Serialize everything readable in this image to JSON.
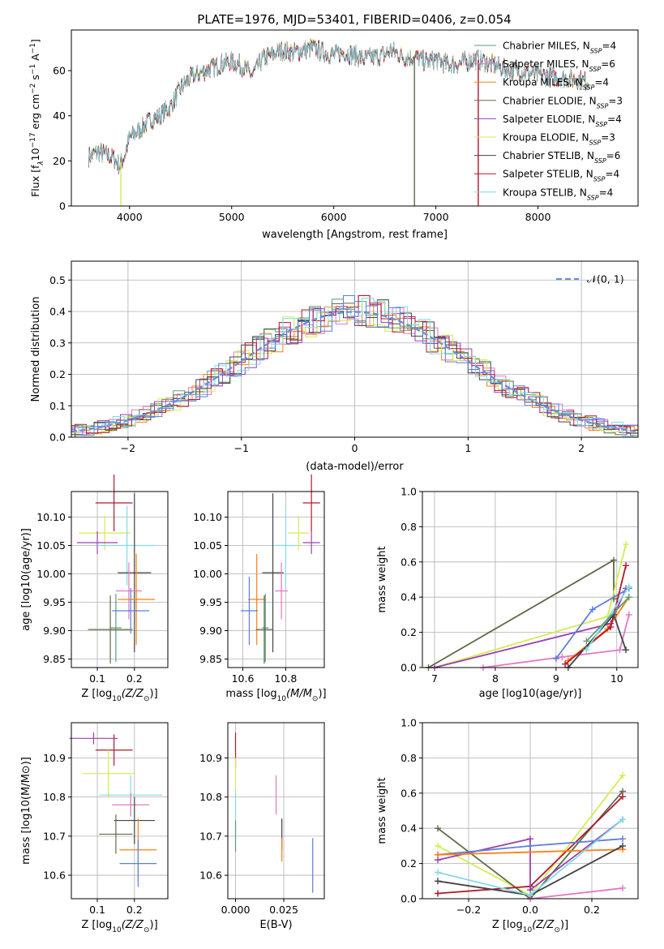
{
  "figure_title": "PLATE=1976, MJD=53401, FIBERID=0406, z=0.054",
  "colors": {
    "Chabrier MILES": "#5b9e78",
    "Salpeter MILES": "#e377c2",
    "Kroupa MILES": "#ff7f0e",
    "Chabrier ELODIE": "#5e6b48",
    "Salpeter ELODIE": "#9e3fb2",
    "Kroupa ELODIE": "#d4ec50",
    "Chabrier STELIB": "#444444",
    "Salpeter STELIB": "#b2182b",
    "Kroupa STELIB": "#7fdce6",
    "extra_blue": "#5a7fdc",
    "normal_curve": "#6a8ed8",
    "grid": "#b0b0b0"
  },
  "chart_data": [
    {
      "id": "spectrum",
      "type": "line",
      "title": "PLATE=1976, MJD=53401, FIBERID=0406, z=0.054",
      "xlabel": "wavelength [Angstrom, rest frame]",
      "ylabel_parts": [
        "Flux [f",
        "λ",
        "10",
        "−17",
        " erg cm",
        "−2",
        " s",
        "−1",
        " A",
        "−1",
        "]"
      ],
      "xlim": [
        3430,
        8980
      ],
      "ylim": [
        0,
        78
      ],
      "xticks": [
        "4000",
        "5000",
        "6000",
        "7000",
        "8000"
      ],
      "yticks": [
        "0",
        "20",
        "40",
        "60"
      ],
      "grid": false,
      "legend_position": "upper-right",
      "legend": [
        {
          "name": "Chabrier MILES",
          "nssp": "4"
        },
        {
          "name": "Salpeter MILES",
          "nssp": "6"
        },
        {
          "name": "Kroupa MILES",
          "nssp": "4"
        },
        {
          "name": "Chabrier ELODIE",
          "nssp": "3"
        },
        {
          "name": "Salpeter ELODIE",
          "nssp": "4"
        },
        {
          "name": "Kroupa ELODIE",
          "nssp": "3"
        },
        {
          "name": "Chabrier STELIB",
          "nssp": "6"
        },
        {
          "name": "Salpeter STELIB",
          "nssp": "4"
        },
        {
          "name": "Kroupa STELIB",
          "nssp": "4"
        }
      ],
      "legend_nssp_label": "N",
      "legend_nssp_sub": "SSP",
      "continuum": [
        [
          3600,
          22
        ],
        [
          3700,
          24
        ],
        [
          3800,
          22
        ],
        [
          3850,
          21
        ],
        [
          3900,
          18
        ],
        [
          3950,
          22
        ],
        [
          4000,
          30
        ],
        [
          4100,
          34
        ],
        [
          4200,
          38
        ],
        [
          4300,
          40
        ],
        [
          4400,
          44
        ],
        [
          4500,
          52
        ],
        [
          4600,
          57
        ],
        [
          4700,
          59
        ],
        [
          4800,
          61
        ],
        [
          4900,
          63
        ],
        [
          5000,
          64
        ],
        [
          5100,
          62
        ],
        [
          5200,
          58
        ],
        [
          5300,
          65
        ],
        [
          5400,
          67
        ],
        [
          5500,
          69
        ],
        [
          5600,
          68
        ],
        [
          5700,
          69
        ],
        [
          5800,
          70
        ],
        [
          5900,
          68
        ],
        [
          6000,
          67
        ],
        [
          6100,
          68
        ],
        [
          6200,
          67
        ],
        [
          6300,
          65
        ],
        [
          6400,
          66
        ],
        [
          6500,
          67
        ],
        [
          6560,
          69
        ],
        [
          6600,
          68
        ],
        [
          6700,
          66
        ],
        [
          6800,
          66
        ],
        [
          6900,
          64
        ],
        [
          7000,
          65
        ],
        [
          7100,
          63
        ],
        [
          7200,
          63
        ],
        [
          7300,
          64
        ],
        [
          7400,
          65
        ],
        [
          7600,
          62
        ],
        [
          7700,
          60
        ],
        [
          7800,
          60
        ],
        [
          8000,
          58
        ],
        [
          8200,
          57
        ],
        [
          8400,
          56
        ],
        [
          8500,
          55
        ]
      ],
      "drops": [
        {
          "series": "Kroupa ELODIE",
          "x": 3915,
          "to": 0
        },
        {
          "series": "Chabrier ELODIE",
          "x": 6790,
          "to": 0
        },
        {
          "series": "Salpeter STELIB",
          "x": 7415,
          "to": 0
        }
      ]
    },
    {
      "id": "residual_hist",
      "type": "histogram",
      "xlabel": "(data-model)/error",
      "ylabel": "Normed distribution",
      "xlim": [
        -2.5,
        2.5
      ],
      "ylim": [
        0,
        0.56
      ],
      "xticks": [
        "−2",
        "−1",
        "0",
        "1",
        "2"
      ],
      "yticks": [
        "0.0",
        "0.1",
        "0.2",
        "0.3",
        "0.4",
        "0.5"
      ],
      "grid": true,
      "legend_position": "upper-right",
      "legend_label": "𝒩(0, 1)",
      "normal_curve": {
        "mean": 0,
        "sigma": 1
      }
    },
    {
      "id": "age_vs_Z",
      "type": "errorbar",
      "xlabel_main": "Z [log",
      "xlabel_sub": "10",
      "xlabel_rest": "(Z/Z",
      "xlabel_sun": "⊙",
      "xlabel_end": ")]",
      "ylabel": "age  [log10(age/yr)]",
      "xlim": [
        0.03,
        0.29
      ],
      "ylim": [
        9.835,
        10.145
      ],
      "xticks": [
        "0.1",
        "0.2"
      ],
      "yticks": [
        "9.85",
        "9.90",
        "9.95",
        "10.00",
        "10.05",
        "10.10"
      ],
      "points": [
        {
          "series": "Salpeter STELIB",
          "x": 0.145,
          "xerr": 0.05,
          "y": 10.125,
          "yerr": 0.05
        },
        {
          "series": "Kroupa ELODIE",
          "x": 0.12,
          "xerr": 0.07,
          "y": 10.072,
          "yerr": 0.03
        },
        {
          "series": "Salpeter ELODIE",
          "x": 0.1,
          "xerr": 0.055,
          "y": 10.055,
          "yerr": 0.02
        },
        {
          "series": "Kroupa STELIB",
          "x": 0.18,
          "xerr": 0.08,
          "y": 10.05,
          "yerr": 0.07
        },
        {
          "series": "Chabrier STELIB",
          "x": 0.2,
          "xerr": 0.045,
          "y": 10.002,
          "yerr": 0.14
        },
        {
          "series": "Salpeter MILES",
          "x": 0.185,
          "xerr": 0.035,
          "y": 9.97,
          "yerr": 0.05
        },
        {
          "series": "Kroupa MILES",
          "x": 0.205,
          "xerr": 0.05,
          "y": 9.955,
          "yerr": 0.08
        },
        {
          "series": "Chabrier MILES",
          "x": 0.15,
          "xerr": 0.015,
          "y": 9.905,
          "yerr": 0.06
        },
        {
          "series": "Chabrier ELODIE",
          "x": 0.135,
          "xerr": 0.06,
          "y": 9.902,
          "yerr": 0.06
        },
        {
          "series": "extra_blue",
          "x": 0.19,
          "xerr": 0.05,
          "y": 9.935,
          "yerr": 0.04
        }
      ]
    },
    {
      "id": "age_vs_mass",
      "type": "errorbar",
      "xlabel_main": "mass [log",
      "xlabel_sub": "10",
      "xlabel_rest": "(M/M",
      "xlabel_sun": "⊙",
      "xlabel_end": ")]",
      "xlim": [
        10.53,
        10.98
      ],
      "ylim": [
        9.835,
        10.145
      ],
      "xticks": [
        "10.6",
        "10.8"
      ],
      "yticks": [
        "9.85",
        "9.90",
        "9.95",
        "10.00",
        "10.05",
        "10.10"
      ],
      "points": [
        {
          "series": "Salpeter STELIB",
          "x": 10.92,
          "xerr": 0.04,
          "y": 10.125,
          "yerr": 0.05
        },
        {
          "series": "Kroupa ELODIE",
          "x": 10.86,
          "xerr": 0.05,
          "y": 10.072,
          "yerr": 0.03
        },
        {
          "series": "Salpeter ELODIE",
          "x": 10.92,
          "xerr": 0.04,
          "y": 10.055,
          "yerr": 0.02
        },
        {
          "series": "Kroupa STELIB",
          "x": 10.8,
          "xerr": 0.05,
          "y": 10.05,
          "yerr": 0.07
        },
        {
          "series": "Chabrier STELIB",
          "x": 10.74,
          "xerr": 0.05,
          "y": 10.002,
          "yerr": 0.14
        },
        {
          "series": "Salpeter MILES",
          "x": 10.78,
          "xerr": 0.03,
          "y": 9.97,
          "yerr": 0.05
        },
        {
          "series": "Kroupa MILES",
          "x": 10.665,
          "xerr": 0.04,
          "y": 9.955,
          "yerr": 0.08
        },
        {
          "series": "Chabrier MILES",
          "x": 10.705,
          "xerr": 0.015,
          "y": 9.905,
          "yerr": 0.06
        },
        {
          "series": "Chabrier ELODIE",
          "x": 10.7,
          "xerr": 0.04,
          "y": 9.902,
          "yerr": 0.06
        },
        {
          "series": "extra_blue",
          "x": 10.63,
          "xerr": 0.04,
          "y": 9.935,
          "yerr": 0.06
        }
      ]
    },
    {
      "id": "weight_vs_age",
      "type": "line",
      "xlabel": "age  [log10(age/yr)]",
      "ylabel": "mass weight",
      "xlim": [
        6.8,
        10.35
      ],
      "ylim": [
        0,
        1
      ],
      "xticks": [
        "7",
        "8",
        "9",
        "10"
      ],
      "yticks": [
        "0.0",
        "0.2",
        "0.4",
        "0.6",
        "0.8",
        "1.0"
      ],
      "grid": true,
      "series": [
        {
          "name": "Chabrier ELODIE",
          "points": [
            [
              6.9,
              0.0
            ],
            [
              9.95,
              0.61
            ],
            [
              9.95,
              0.39
            ]
          ]
        },
        {
          "name": "Kroupa ELODIE",
          "points": [
            [
              7.0,
              0.0
            ],
            [
              9.85,
              0.29
            ],
            [
              10.15,
              0.7
            ]
          ]
        },
        {
          "name": "Salpeter ELODIE",
          "points": [
            [
              7.0,
              0.0
            ],
            [
              9.9,
              0.25
            ],
            [
              10.15,
              0.45
            ]
          ]
        },
        {
          "name": "Salpeter MILES",
          "points": [
            [
              7.8,
              0.0
            ],
            [
              9.1,
              0.06
            ],
            [
              10.05,
              0.1
            ],
            [
              10.2,
              0.3
            ]
          ]
        },
        {
          "name": "extra_blue",
          "points": [
            [
              9.0,
              0.05
            ],
            [
              9.6,
              0.33
            ],
            [
              10.2,
              0.45
            ]
          ]
        },
        {
          "name": "Kroupa MILES",
          "points": [
            [
              9.2,
              0.04
            ],
            [
              9.85,
              0.22
            ],
            [
              10.2,
              0.4
            ]
          ]
        },
        {
          "name": "Salpeter STELIB",
          "points": [
            [
              9.15,
              0.02
            ],
            [
              9.9,
              0.23
            ],
            [
              10.15,
              0.58
            ]
          ]
        },
        {
          "name": "Chabrier STELIB",
          "points": [
            [
              9.2,
              0.0
            ],
            [
              9.95,
              0.3
            ],
            [
              10.15,
              0.1
            ]
          ]
        },
        {
          "name": "Kroupa STELIB",
          "points": [
            [
              9.5,
              0.1
            ],
            [
              10.2,
              0.46
            ]
          ]
        },
        {
          "name": "Chabrier MILES",
          "points": [
            [
              9.5,
              0.15
            ],
            [
              10.2,
              0.4
            ]
          ]
        }
      ]
    },
    {
      "id": "mass_vs_Z",
      "type": "errorbar",
      "xlabel_main": "Z [log",
      "xlabel_sub": "10",
      "xlabel_rest": "(Z/Z",
      "xlabel_sun": "⊙",
      "xlabel_end": ")]",
      "ylabel": "mass [log10(M/M⊙)]",
      "xlim": [
        0.03,
        0.29
      ],
      "ylim": [
        10.54,
        10.99
      ],
      "xticks": [
        "0.1",
        "0.2"
      ],
      "yticks": [
        "10.6",
        "10.7",
        "10.8",
        "10.9"
      ],
      "points": [
        {
          "series": "Salpeter ELODIE",
          "x": 0.09,
          "xerr": 0.065,
          "y": 10.95,
          "yerr": 0.015
        },
        {
          "series": "Salpeter STELIB",
          "x": 0.145,
          "xerr": 0.05,
          "y": 10.92,
          "yerr": 0.04
        },
        {
          "series": "Kroupa ELODIE",
          "x": 0.13,
          "xerr": 0.07,
          "y": 10.86,
          "yerr": 0.06
        },
        {
          "series": "Kroupa STELIB",
          "x": 0.19,
          "xerr": 0.085,
          "y": 10.805,
          "yerr": 0.05
        },
        {
          "series": "Salpeter MILES",
          "x": 0.19,
          "xerr": 0.05,
          "y": 10.78,
          "yerr": 0.03
        },
        {
          "series": "Chabrier STELIB",
          "x": 0.2,
          "xerr": 0.055,
          "y": 10.74,
          "yerr": 0.06
        },
        {
          "series": "Kroupa MILES",
          "x": 0.21,
          "xerr": 0.05,
          "y": 10.665,
          "yerr": 0.08
        },
        {
          "series": "Chabrier ELODIE",
          "x": 0.15,
          "xerr": 0.045,
          "y": 10.705,
          "yerr": 0.05
        },
        {
          "series": "extra_blue",
          "x": 0.21,
          "xerr": 0.05,
          "y": 10.63,
          "yerr": 0.06
        }
      ]
    },
    {
      "id": "mass_vs_ebv",
      "type": "errorbar",
      "xlabel": "E(B-V)",
      "xlim": [
        -0.004,
        0.046
      ],
      "ylim": [
        10.54,
        10.99
      ],
      "xticks": [
        "0.000",
        "0.025"
      ],
      "yticks": [
        "10.6",
        "10.7",
        "10.8",
        "10.9"
      ],
      "points": [
        {
          "series": "Salpeter STELIB",
          "x": 0.0,
          "xerr": 0,
          "y": 10.92,
          "yerr": 0.045
        },
        {
          "series": "Kroupa ELODIE",
          "x": 0.0,
          "xerr": 0,
          "y": 10.86,
          "yerr": 0.04
        },
        {
          "series": "Kroupa STELIB",
          "x": 0.0,
          "xerr": 0,
          "y": 10.76,
          "yerr": 0.05
        },
        {
          "series": "Chabrier MILES",
          "x": 0.0,
          "xerr": 0,
          "y": 10.7,
          "yerr": 0.04
        },
        {
          "series": "Salpeter MILES",
          "x": 0.021,
          "xerr": 0,
          "y": 10.805,
          "yerr": 0.05
        },
        {
          "series": "Chabrier STELIB",
          "x": 0.024,
          "xerr": 0,
          "y": 10.705,
          "yerr": 0.04
        },
        {
          "series": "Kroupa MILES",
          "x": 0.024,
          "xerr": 0,
          "y": 10.665,
          "yerr": 0.03
        },
        {
          "series": "extra_blue",
          "x": 0.04,
          "xerr": 0,
          "y": 10.625,
          "yerr": 0.07
        }
      ]
    },
    {
      "id": "weight_vs_Z",
      "type": "line",
      "xlabel_main": "Z [log",
      "xlabel_sub": "10",
      "xlabel_rest": "(Z/Z",
      "xlabel_sun": "⊙",
      "xlabel_end": ")]",
      "ylabel": "mass weight",
      "xlim": [
        -0.35,
        0.35
      ],
      "ylim": [
        0,
        1
      ],
      "xticks": [
        "−0.2",
        "0.0",
        "0.2"
      ],
      "yticks": [
        "0.0",
        "0.2",
        "0.4",
        "0.6",
        "0.8",
        "1.0"
      ],
      "grid": true,
      "series": [
        {
          "name": "Kroupa ELODIE",
          "points": [
            [
              -0.3,
              0.3
            ],
            [
              0.0,
              0.02
            ],
            [
              0.3,
              0.7
            ]
          ]
        },
        {
          "name": "Chabrier ELODIE",
          "points": [
            [
              -0.3,
              0.4
            ],
            [
              0.0,
              0.0
            ],
            [
              0.3,
              0.61
            ]
          ]
        },
        {
          "name": "Salpeter STELIB",
          "points": [
            [
              -0.3,
              0.03
            ],
            [
              0.0,
              0.07
            ],
            [
              0.3,
              0.58
            ]
          ]
        },
        {
          "name": "Salpeter ELODIE",
          "points": [
            [
              -0.3,
              0.22
            ],
            [
              0.0,
              0.34
            ],
            [
              0.0,
              0.05
            ],
            [
              0.3,
              0.45
            ]
          ]
        },
        {
          "name": "extra_blue",
          "points": [
            [
              -0.3,
              0.25
            ],
            [
              0.0,
              0.3
            ],
            [
              0.3,
              0.34
            ]
          ]
        },
        {
          "name": "Kroupa MILES",
          "points": [
            [
              -0.3,
              0.25
            ],
            [
              0.3,
              0.28
            ]
          ]
        },
        {
          "name": "Chabrier STELIB",
          "points": [
            [
              -0.3,
              0.1
            ],
            [
              0.0,
              0.02
            ],
            [
              0.3,
              0.3
            ]
          ]
        },
        {
          "name": "Kroupa STELIB",
          "points": [
            [
              -0.3,
              0.15
            ],
            [
              0.0,
              0.02
            ],
            [
              0.3,
              0.45
            ]
          ]
        },
        {
          "name": "Salpeter MILES",
          "points": [
            [
              0.0,
              0.0
            ],
            [
              0.3,
              0.06
            ]
          ]
        }
      ]
    }
  ]
}
